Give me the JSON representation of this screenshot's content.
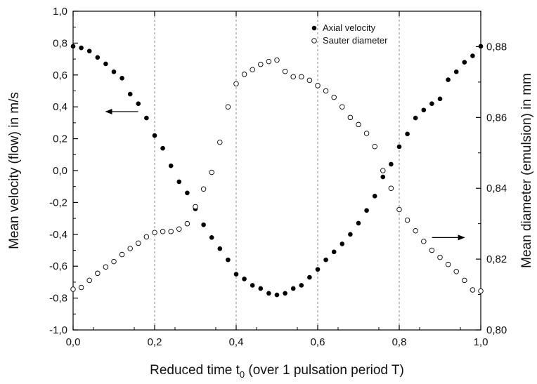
{
  "chart_data": {
    "type": "scatter",
    "xlabel": "Reduced time t",
    "xlabel_sub": "0",
    "xlabel_suffix": " (over 1 pulsation period T)",
    "ylabel_left": "Mean velocity (flow) in m/s",
    "ylabel_right": "Mean diameter (emulsion) in mm",
    "xlim": [
      0.0,
      1.0
    ],
    "ylim_left": [
      -1.0,
      1.0
    ],
    "ylim_right": [
      0.8,
      0.89
    ],
    "x_ticks": [
      "0,0",
      "0,2",
      "0,4",
      "0,6",
      "0,8",
      "1,0"
    ],
    "y_left_ticks": [
      "-1,0",
      "-0,8",
      "-0,6",
      "-0,4",
      "-0,2",
      "0,0",
      "0,2",
      "0,4",
      "0,6",
      "0,8",
      "1,0"
    ],
    "y_right_ticks": [
      "0,80",
      "0,82",
      "0,84",
      "0,86",
      "0,88"
    ],
    "vertical_dashed_lines": [
      0.2,
      0.4,
      0.6,
      0.8
    ],
    "legend_position": "top-right",
    "series": [
      {
        "name": "Axial velocity",
        "axis": "left",
        "marker": "filled-circle",
        "color": "#000000",
        "points": [
          [
            0.0,
            0.78
          ],
          [
            0.02,
            0.77
          ],
          [
            0.04,
            0.75
          ],
          [
            0.06,
            0.71
          ],
          [
            0.08,
            0.67
          ],
          [
            0.1,
            0.62
          ],
          [
            0.12,
            0.58
          ],
          [
            0.14,
            0.48
          ],
          [
            0.16,
            0.42
          ],
          [
            0.18,
            0.33
          ],
          [
            0.2,
            0.22
          ],
          [
            0.22,
            0.14
          ],
          [
            0.24,
            0.03
          ],
          [
            0.26,
            -0.07
          ],
          [
            0.28,
            -0.14
          ],
          [
            0.3,
            -0.24
          ],
          [
            0.32,
            -0.34
          ],
          [
            0.34,
            -0.42
          ],
          [
            0.36,
            -0.49
          ],
          [
            0.38,
            -0.56
          ],
          [
            0.4,
            -0.65
          ],
          [
            0.42,
            -0.68
          ],
          [
            0.44,
            -0.72
          ],
          [
            0.46,
            -0.74
          ],
          [
            0.48,
            -0.77
          ],
          [
            0.5,
            -0.78
          ],
          [
            0.52,
            -0.77
          ],
          [
            0.54,
            -0.74
          ],
          [
            0.56,
            -0.72
          ],
          [
            0.58,
            -0.67
          ],
          [
            0.6,
            -0.62
          ],
          [
            0.62,
            -0.56
          ],
          [
            0.64,
            -0.51
          ],
          [
            0.66,
            -0.46
          ],
          [
            0.68,
            -0.4
          ],
          [
            0.7,
            -0.33
          ],
          [
            0.72,
            -0.25
          ],
          [
            0.74,
            -0.16
          ],
          [
            0.76,
            -0.04
          ],
          [
            0.78,
            0.04
          ],
          [
            0.8,
            0.15
          ],
          [
            0.82,
            0.23
          ],
          [
            0.84,
            0.33
          ],
          [
            0.86,
            0.38
          ],
          [
            0.88,
            0.42
          ],
          [
            0.9,
            0.45
          ],
          [
            0.92,
            0.57
          ],
          [
            0.94,
            0.62
          ],
          [
            0.96,
            0.68
          ],
          [
            0.98,
            0.72
          ],
          [
            1.0,
            0.78
          ]
        ]
      },
      {
        "name": "Sauter diameter",
        "axis": "right",
        "marker": "open-circle",
        "color": "#000000",
        "points": [
          [
            0.0,
            0.8115
          ],
          [
            0.02,
            0.812
          ],
          [
            0.04,
            0.814
          ],
          [
            0.06,
            0.816
          ],
          [
            0.08,
            0.8178
          ],
          [
            0.1,
            0.8193
          ],
          [
            0.12,
            0.8213
          ],
          [
            0.14,
            0.823
          ],
          [
            0.16,
            0.8245
          ],
          [
            0.18,
            0.8263
          ],
          [
            0.2,
            0.8275
          ],
          [
            0.22,
            0.8278
          ],
          [
            0.24,
            0.8278
          ],
          [
            0.26,
            0.8285
          ],
          [
            0.28,
            0.83
          ],
          [
            0.3,
            0.8348
          ],
          [
            0.32,
            0.8398
          ],
          [
            0.34,
            0.8445
          ],
          [
            0.36,
            0.853
          ],
          [
            0.38,
            0.863
          ],
          [
            0.4,
            0.8695
          ],
          [
            0.42,
            0.8722
          ],
          [
            0.44,
            0.8735
          ],
          [
            0.46,
            0.875
          ],
          [
            0.48,
            0.8758
          ],
          [
            0.5,
            0.8762
          ],
          [
            0.52,
            0.873
          ],
          [
            0.54,
            0.8715
          ],
          [
            0.56,
            0.8715
          ],
          [
            0.58,
            0.8705
          ],
          [
            0.6,
            0.869
          ],
          [
            0.62,
            0.8675
          ],
          [
            0.64,
            0.8657
          ],
          [
            0.66,
            0.863
          ],
          [
            0.68,
            0.86
          ],
          [
            0.7,
            0.858
          ],
          [
            0.72,
            0.8555
          ],
          [
            0.74,
            0.8518
          ],
          [
            0.76,
            0.845
          ],
          [
            0.78,
            0.84
          ],
          [
            0.8,
            0.834
          ],
          [
            0.82,
            0.831
          ],
          [
            0.84,
            0.828
          ],
          [
            0.86,
            0.825
          ],
          [
            0.88,
            0.8225
          ],
          [
            0.9,
            0.8205
          ],
          [
            0.92,
            0.8185
          ],
          [
            0.94,
            0.8165
          ],
          [
            0.96,
            0.814
          ],
          [
            0.98,
            0.8113
          ],
          [
            1.0,
            0.811
          ]
        ]
      }
    ],
    "annotations": [
      {
        "type": "arrow",
        "direction": "left",
        "points_to": "left-axis",
        "at_x": 0.12,
        "at_y_left": 0.37
      },
      {
        "type": "arrow",
        "direction": "right",
        "points_to": "right-axis",
        "at_x": 0.92,
        "at_y_left": -0.42
      }
    ]
  }
}
